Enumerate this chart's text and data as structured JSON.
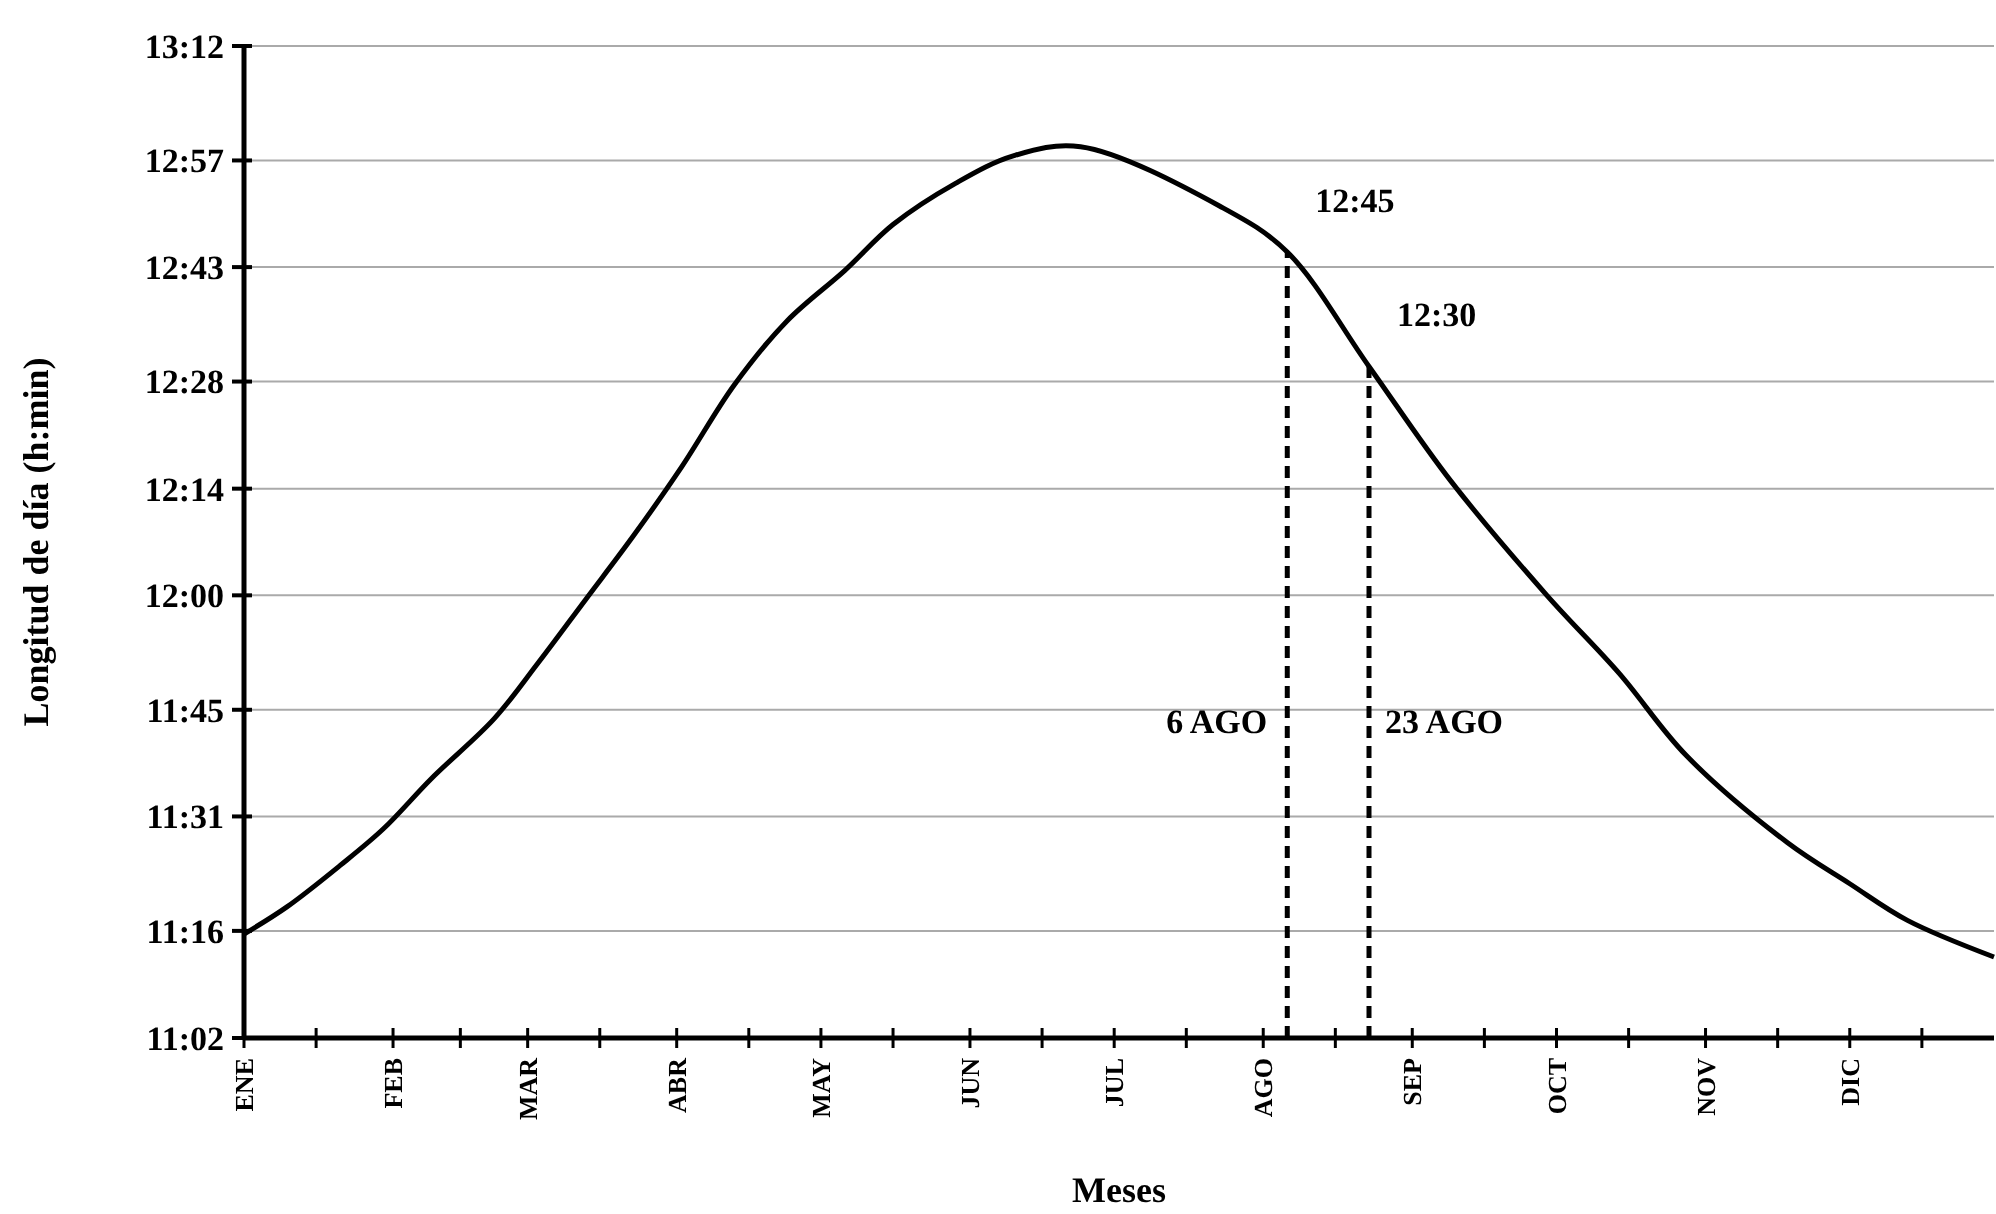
{
  "chart_data": {
    "type": "line",
    "xlabel": "Meses",
    "ylabel": "Longitud de día (h:min)",
    "x": [
      "--01-01",
      "--01-10",
      "--01-21",
      "--01-30",
      "--02-09",
      "--02-22",
      "--03-03",
      "--03-13",
      "--03-23",
      "--04-02",
      "--04-13",
      "--04-24",
      "--05-06",
      "--05-16",
      "--05-29",
      "--06-10",
      "--06-24",
      "--07-23",
      "--08-06",
      "--08-23",
      "--09-09",
      "--09-29",
      "--10-14",
      "--10-28",
      "--11-18",
      "--12-01",
      "--12-13",
      "--12-31"
    ],
    "series": [
      {
        "color": "#000000",
        "values": [
          11.26,
          11.32,
          11.41,
          11.49,
          11.6,
          11.73,
          11.85,
          11.99,
          12.13,
          12.28,
          12.46,
          12.6,
          12.71,
          12.81,
          12.9,
          12.96,
          12.98,
          12.85,
          12.75,
          12.5,
          12.25,
          12.0,
          11.83,
          11.65,
          11.46,
          11.37,
          11.29,
          11.21
        ]
      }
    ],
    "xlim": [
      "--01-01",
      "--12-31"
    ],
    "xticks": [
      {
        "value": "--01-01",
        "label": "ENE"
      },
      {
        "value": "--01-16",
        "label": null
      },
      {
        "value": "--02-01",
        "label": "FEB"
      },
      {
        "value": "--02-15",
        "label": null
      },
      {
        "value": "--03-01",
        "label": "MAR"
      },
      {
        "value": "--03-16",
        "label": null
      },
      {
        "value": "--04-01",
        "label": "ABR"
      },
      {
        "value": "--04-16",
        "label": null
      },
      {
        "value": "--05-01",
        "label": "MAY"
      },
      {
        "value": "--05-16",
        "label": null
      },
      {
        "value": "--06-01",
        "label": "JUN"
      },
      {
        "value": "--06-16",
        "label": null
      },
      {
        "value": "--07-01",
        "label": "JUL"
      },
      {
        "value": "--07-16",
        "label": null
      },
      {
        "value": "--08-01",
        "label": "AGO"
      },
      {
        "value": "--08-16",
        "label": null
      },
      {
        "value": "--09-01",
        "label": "SEP"
      },
      {
        "value": "--09-16",
        "label": null
      },
      {
        "value": "--10-01",
        "label": "OCT"
      },
      {
        "value": "--10-16",
        "label": null
      },
      {
        "value": "--11-01",
        "label": "NOV"
      },
      {
        "value": "--11-16",
        "label": null
      },
      {
        "value": "--12-01",
        "label": "DIC"
      },
      {
        "value": "--12-16",
        "label": null
      }
    ],
    "ylim": [
      11.033,
      13.2
    ],
    "yticks": [
      {
        "value": 11.033,
        "label": "11:02"
      },
      {
        "value": 11.267,
        "label": "11:16"
      },
      {
        "value": 11.517,
        "label": "11:31"
      },
      {
        "value": 11.75,
        "label": "11:45"
      },
      {
        "value": 12,
        "label": "12:00"
      },
      {
        "value": 12.233,
        "label": "12:14"
      },
      {
        "value": 12.467,
        "label": "12:28"
      },
      {
        "value": 12.717,
        "label": "12:43"
      },
      {
        "value": 12.95,
        "label": "12:57"
      },
      {
        "value": 13.2,
        "label": "13:12"
      }
    ],
    "grid": "y",
    "marker": "none",
    "line_style": "solid",
    "ref_lines": [
      {
        "axis": "x",
        "value": "--08-06",
        "label": "6 AGO",
        "line_style": "dashed"
      },
      {
        "axis": "x",
        "value": "--08-23",
        "label": "23 AGO",
        "line_style": "dashed"
      }
    ],
    "annotations": [
      {
        "text": "12:45",
        "x": "--08-06",
        "y": 12.75
      },
      {
        "text": "12:30",
        "x": "--08-23",
        "y": 12.5
      }
    ]
  }
}
